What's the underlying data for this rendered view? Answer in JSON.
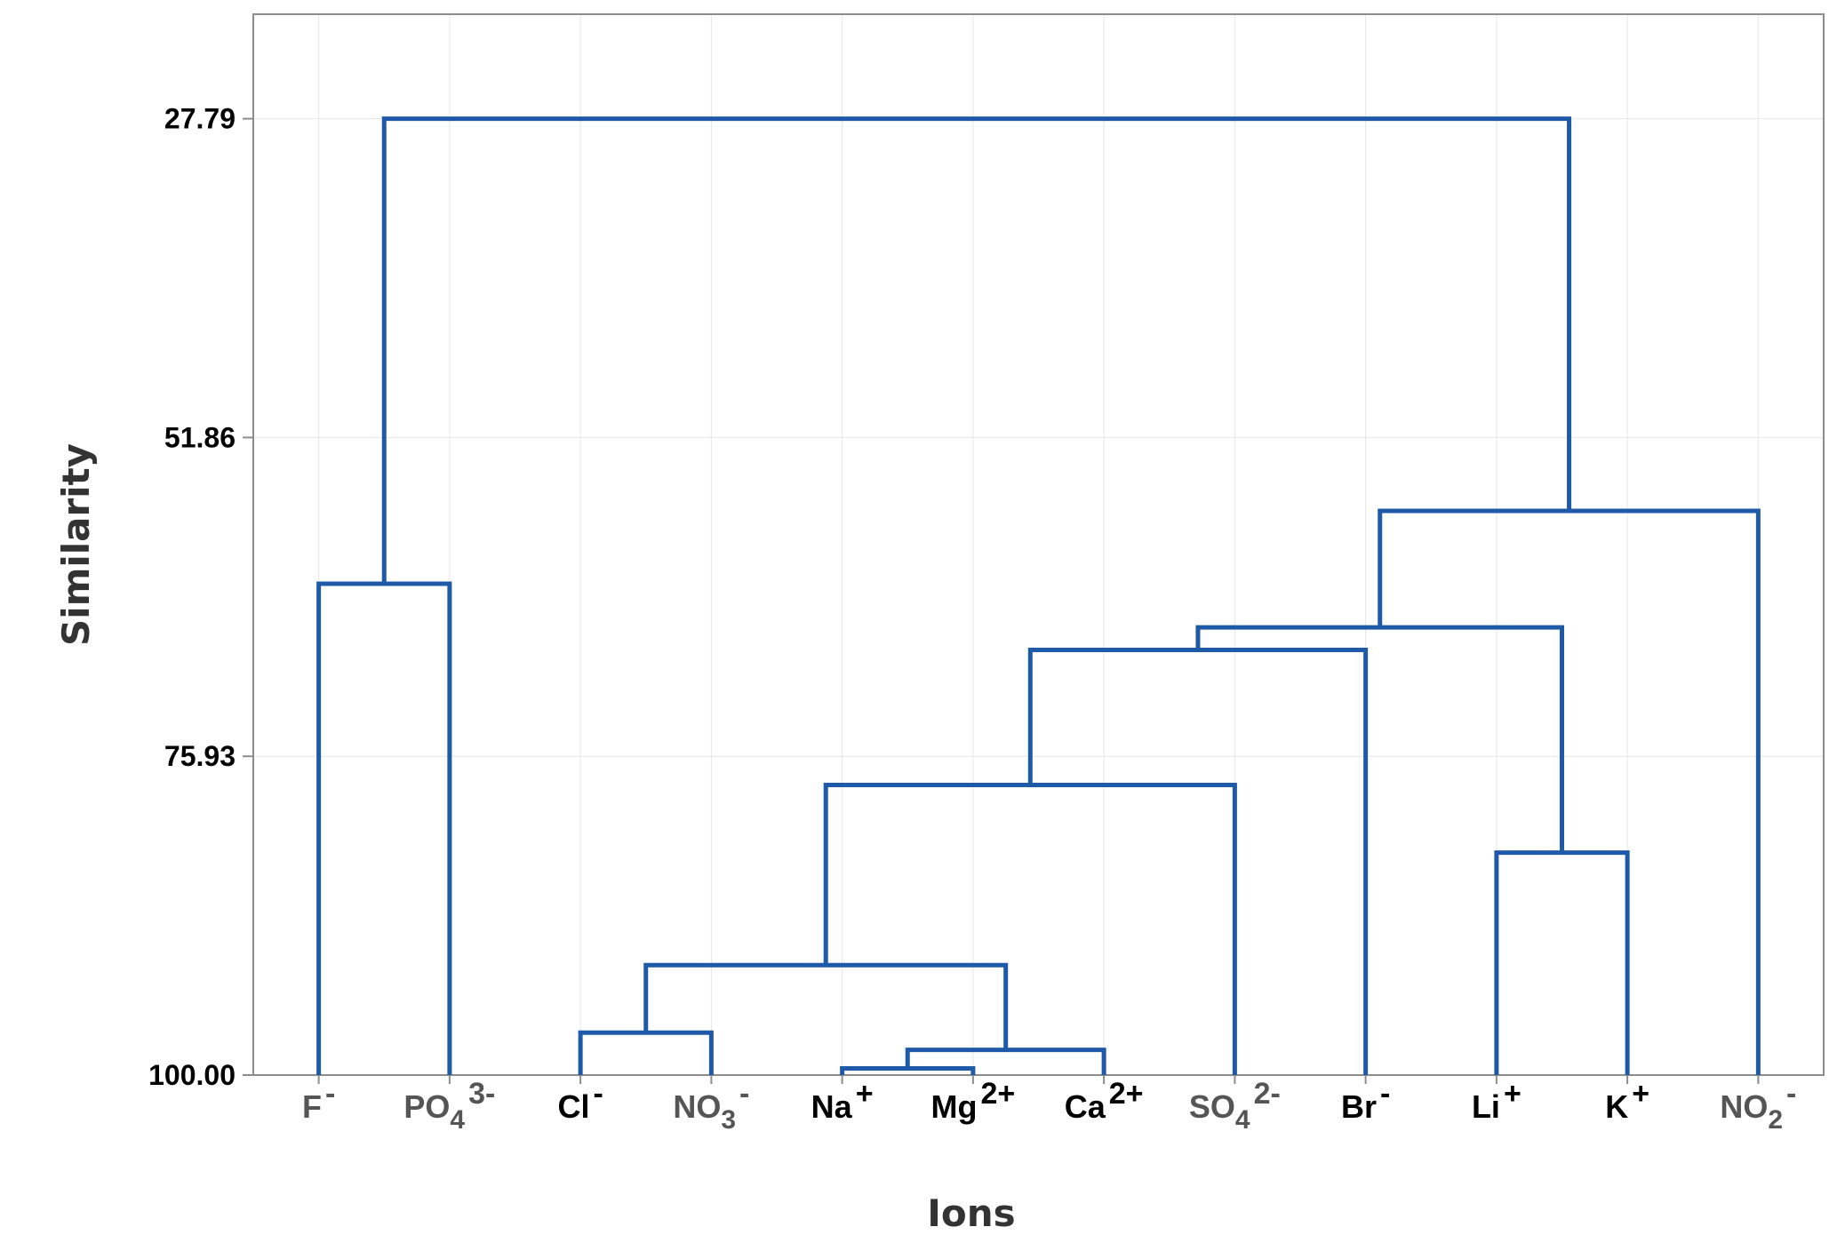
{
  "chart_data": {
    "type": "dendrogram",
    "xlabel": "Ions",
    "ylabel": "Similarity",
    "yticks": [
      "27.79",
      "51.86",
      "75.93",
      "100.00"
    ],
    "ylim": [
      27.79,
      100.0
    ],
    "y_min_plot": 19.9,
    "grid": true,
    "line_color": "#1f5aa8",
    "leaves": [
      {
        "base": "F",
        "sup": "-",
        "sub": "",
        "color": "#555555"
      },
      {
        "base": "PO",
        "sub": "4",
        "sup": "3-",
        "color": "#555555"
      },
      {
        "base": "Cl",
        "sup": "-",
        "sub": "",
        "color": "#000000"
      },
      {
        "base": "NO",
        "sub": "3",
        "sup": "-",
        "color": "#555555"
      },
      {
        "base": "Na",
        "sup": "+",
        "sub": "",
        "color": "#000000"
      },
      {
        "base": "Mg",
        "sup": "2+",
        "sub": "",
        "color": "#000000"
      },
      {
        "base": "Ca",
        "sup": "2+",
        "sub": "",
        "color": "#000000"
      },
      {
        "base": "SO",
        "sub": "4",
        "sup": "2-",
        "color": "#555555"
      },
      {
        "base": "Br",
        "sup": "-",
        "sub": "",
        "color": "#000000"
      },
      {
        "base": "Li",
        "sup": "+",
        "sub": "",
        "color": "#000000"
      },
      {
        "base": "K",
        "sup": "+",
        "sub": "",
        "color": "#000000"
      },
      {
        "base": "NO",
        "sub": "2",
        "sup": "-",
        "color": "#555555"
      }
    ],
    "merges": [
      {
        "id": 1,
        "left": "Na",
        "right": "Mg",
        "similarity": 99.5
      },
      {
        "id": 2,
        "left": "m1",
        "right": "Ca",
        "similarity": 98.1
      },
      {
        "id": 3,
        "left": "Cl",
        "right": "NO3",
        "similarity": 96.8
      },
      {
        "id": 4,
        "left": "m3",
        "right": "m2",
        "similarity": 91.7
      },
      {
        "id": 5,
        "left": "m4",
        "right": "SO4",
        "similarity": 78.1
      },
      {
        "id": 6,
        "left": "Li",
        "right": "K",
        "similarity": 83.2
      },
      {
        "id": 7,
        "left": "m5",
        "right": "Br",
        "similarity": 67.9
      },
      {
        "id": 8,
        "left": "m7",
        "right": "m6",
        "similarity": 66.2
      },
      {
        "id": 9,
        "left": "m8",
        "right": "NO2",
        "similarity": 57.4
      },
      {
        "id": 10,
        "left": "F",
        "right": "PO4",
        "similarity": 62.9
      },
      {
        "id": 11,
        "left": "m10",
        "right": "m9",
        "similarity": 27.79
      }
    ]
  }
}
